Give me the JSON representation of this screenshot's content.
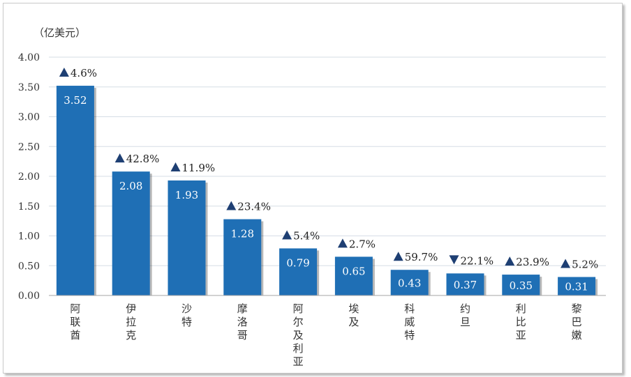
{
  "chart_data": {
    "type": "bar",
    "unit_label": "（亿美元）",
    "categories": [
      "阿联酋",
      "伊拉克",
      "沙特",
      "摩洛哥",
      "阿尔及利亚",
      "埃及",
      "科威特",
      "约旦",
      "利比亚",
      "黎巴嫩"
    ],
    "values": [
      3.52,
      2.08,
      1.93,
      1.28,
      0.79,
      0.65,
      0.43,
      0.37,
      0.35,
      0.31
    ],
    "value_labels": [
      "3.52",
      "2.08",
      "1.93",
      "1.28",
      "0.79",
      "0.65",
      "0.43",
      "0.37",
      "0.35",
      "0.31"
    ],
    "changes": [
      {
        "direction": "up",
        "text": "4.6%"
      },
      {
        "direction": "up",
        "text": "42.8%"
      },
      {
        "direction": "up",
        "text": "11.9%"
      },
      {
        "direction": "up",
        "text": "23.4%"
      },
      {
        "direction": "up",
        "text": "5.4%"
      },
      {
        "direction": "up",
        "text": "2.7%"
      },
      {
        "direction": "up",
        "text": "59.7%"
      },
      {
        "direction": "down",
        "text": "22.1%"
      },
      {
        "direction": "up",
        "text": "23.9%"
      },
      {
        "direction": "up",
        "text": "5.2%"
      }
    ],
    "ylim": [
      0,
      4.0
    ],
    "yticks": [
      "0.00",
      "0.50",
      "1.00",
      "1.50",
      "2.00",
      "2.50",
      "3.00",
      "3.50",
      "4.00"
    ],
    "grid": true,
    "colors": {
      "bar": "#1f6fb5",
      "arrow": "#1e3f73",
      "grid": "#d6dde6"
    }
  }
}
